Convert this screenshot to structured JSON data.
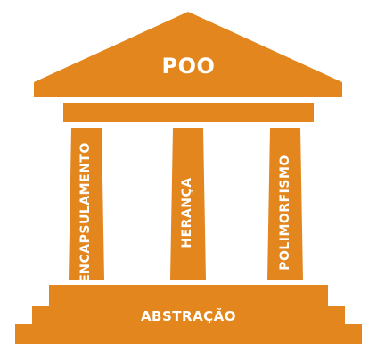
{
  "colors": {
    "primary": "#e2861d",
    "text": "#ffffff",
    "background": "#ffffff"
  },
  "roof": {
    "label": "POO"
  },
  "pillars": [
    {
      "label": "ENCAPSULAMENTO"
    },
    {
      "label": "HERANÇA"
    },
    {
      "label": "POLIMORFISMO"
    }
  ],
  "base": {
    "label": "ABSTRAÇÃO"
  }
}
